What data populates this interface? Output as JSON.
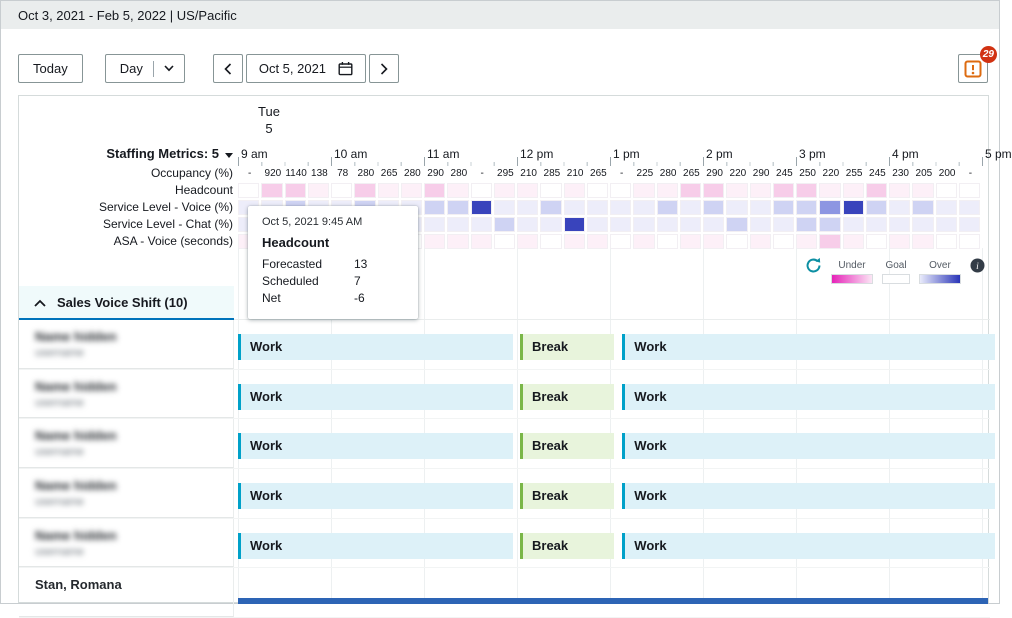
{
  "header": {
    "range_text": "Oct 3, 2021 - Feb 5, 2022 | US/Pacific"
  },
  "toolbar": {
    "today_label": "Today",
    "view_label": "Day",
    "date_label": "Oct 5, 2021",
    "alerts_count": "29"
  },
  "day_header": {
    "weekday": "Tue",
    "day": "5"
  },
  "timeline": {
    "hours": [
      "9 am",
      "10 am",
      "11 am",
      "12 pm",
      "1 pm",
      "2 pm",
      "3 pm",
      "4 pm",
      "5 pm"
    ]
  },
  "staffing": {
    "title": "Staffing Metrics: 5",
    "metrics": [
      "Occupancy (%)",
      "Headcount",
      "Service Level - Voice (%)",
      "Service Level - Chat (%)",
      "ASA - Voice (seconds)"
    ]
  },
  "grid": {
    "occupancy_values": [
      "-",
      "920",
      "1140",
      "138",
      "78",
      "280",
      "265",
      "280",
      "290",
      "280",
      "-",
      "295",
      "210",
      "285",
      "210",
      "265",
      "-",
      "225",
      "280",
      "265",
      "290",
      "220",
      "290",
      "245",
      "250",
      "220",
      "255",
      "245",
      "230",
      "205",
      "200",
      "-"
    ],
    "palette": {
      "w": "#ffffff",
      "p1": "#fdf0f8",
      "p2": "#f7cde9",
      "p3": "#f08fd2",
      "b1": "#ededfa",
      "b2": "#cfd3f3",
      "b3": "#8d96e2",
      "b4": "#3944bc"
    },
    "rows": [
      {
        "metric": "Headcount",
        "cells": [
          "w",
          "p2",
          "p2",
          "p1",
          "w",
          "p2",
          "p1",
          "p1",
          "p2",
          "p1",
          "w",
          "p1",
          "p1",
          "w",
          "p1",
          "w",
          "w",
          "p1",
          "p1",
          "p2",
          "p2",
          "p1",
          "p1",
          "p2",
          "p2",
          "p1",
          "p1",
          "p2",
          "p1",
          "p1",
          "w",
          "w"
        ]
      },
      {
        "metric": "Service Level - Voice (%)",
        "cells": [
          "b1",
          "b1",
          "b2",
          "b1",
          "b1",
          "b2",
          "b1",
          "b1",
          "b2",
          "b2",
          "b4",
          "b1",
          "b1",
          "b2",
          "b1",
          "b1",
          "b1",
          "b1",
          "b2",
          "b1",
          "b2",
          "b1",
          "b1",
          "b2",
          "b2",
          "b3",
          "b4",
          "b2",
          "b1",
          "b2",
          "b1",
          "b1"
        ]
      },
      {
        "metric": "Service Level - Chat (%)",
        "cells": [
          "b1",
          "b1",
          "b1",
          "b1",
          "b1",
          "b1",
          "b1",
          "b1",
          "b1",
          "b1",
          "b1",
          "b2",
          "b1",
          "b1",
          "b4",
          "b1",
          "b1",
          "b1",
          "b1",
          "b1",
          "b1",
          "b2",
          "b1",
          "b1",
          "b2",
          "b2",
          "b1",
          "b1",
          "b1",
          "b1",
          "b1",
          "b1"
        ]
      },
      {
        "metric": "ASA - Voice (seconds)",
        "cells": [
          "p1",
          "p1",
          "p2",
          "p1",
          "w",
          "p1",
          "p1",
          "w",
          "p1",
          "p1",
          "p1",
          "w",
          "p1",
          "w",
          "p1",
          "p1",
          "w",
          "p1",
          "w",
          "p1",
          "p1",
          "w",
          "p1",
          "w",
          "p1",
          "p2",
          "p1",
          "w",
          "p1",
          "p1",
          "w",
          "w"
        ]
      }
    ]
  },
  "tooltip": {
    "timestamp": "Oct 5, 2021 9:45 AM",
    "metric": "Headcount",
    "rows": [
      {
        "label": "Forecasted",
        "value": "13"
      },
      {
        "label": "Scheduled",
        "value": "7"
      },
      {
        "label": "Net",
        "value": "-6"
      }
    ]
  },
  "legend": {
    "under": "Under",
    "goal": "Goal",
    "over": "Over"
  },
  "section": {
    "title": "Sales Voice Shift (10)"
  },
  "roster": {
    "agents": [
      {
        "name": "Name hidden",
        "sub": "username",
        "blurred": true,
        "show_bars": true
      },
      {
        "name": "Name hidden",
        "sub": "username",
        "blurred": true,
        "show_bars": true
      },
      {
        "name": "Name hidden",
        "sub": "username",
        "blurred": true,
        "show_bars": true
      },
      {
        "name": "Name hidden",
        "sub": "username",
        "blurred": true,
        "show_bars": true
      },
      {
        "name": "Name hidden",
        "sub": "username",
        "blurred": true,
        "show_bars": true
      },
      {
        "name": "Stan, Romana",
        "sub": "",
        "blurred": false,
        "show_bars": false
      }
    ],
    "segments": [
      {
        "label": "Work",
        "type": "work",
        "start": 9,
        "end": 12
      },
      {
        "label": "Break",
        "type": "break",
        "start": 12,
        "end": 13.05
      },
      {
        "label": "Work",
        "type": "work",
        "start": 13.1,
        "end": 17.15
      }
    ]
  },
  "colors": {
    "accent": "#0073bb",
    "badge": "#d13212",
    "alert_icon": "#dd6b10",
    "work_bg": "#ddf1f8",
    "work_border": "#00a1c9",
    "break_bg": "#e8f4dc",
    "break_border": "#7ab648",
    "section_bg": "#f0fafb",
    "under_gradient_start": "#e623b8",
    "over_gradient_end": "#2a35b8",
    "partial_bar": "#2d64b5",
    "refresh_icon": "#0d8fa3",
    "topbar_bg": "#eaeded"
  }
}
